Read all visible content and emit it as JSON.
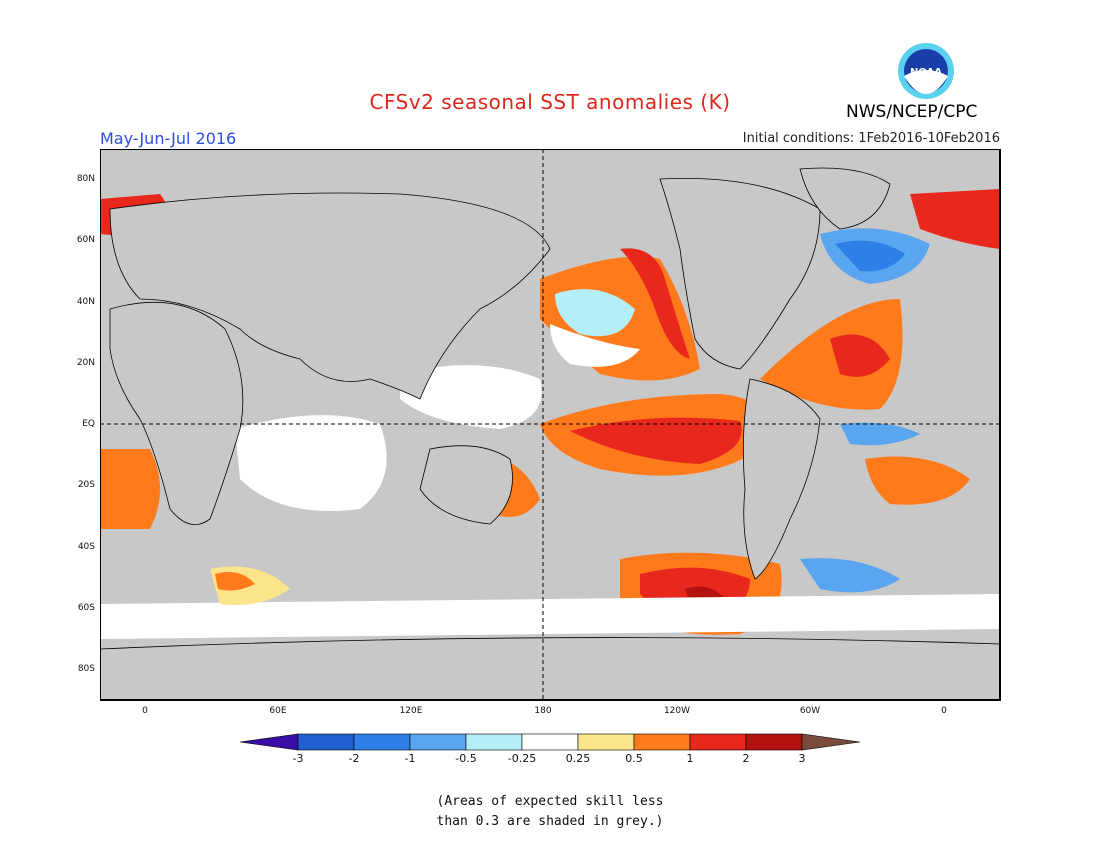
{
  "header": {
    "title": "CFSv2 seasonal SST anomalies (K)",
    "season": "May-Jun-Jul 2016",
    "initial_conditions": "Initial conditions: 1Feb2016-10Feb2016",
    "agency": "NWS/NCEP/CPC",
    "logo_text": "NOAA"
  },
  "map": {
    "lat_labels": [
      "80N",
      "60N",
      "40N",
      "20N",
      "EQ",
      "20S",
      "40S",
      "60S",
      "80S"
    ],
    "lon_labels": [
      "0",
      "60E",
      "120E",
      "180",
      "120W",
      "60W",
      "0"
    ],
    "land_color": "#c8c8c8",
    "ocean_color": "#c8c8c8"
  },
  "colorbar": {
    "labels": [
      "-3",
      "-2",
      "-1",
      "-0.5",
      "-0.25",
      "0.25",
      "0.5",
      "1",
      "2",
      "3"
    ],
    "colors": [
      "#3a0fa8",
      "#1f5fd0",
      "#2f7fe8",
      "#5aa5f0",
      "#b4eef6",
      "#ffffff",
      "#fbe48a",
      "#ff7a1a",
      "#e8281c",
      "#b3120e",
      "#7a4a3a"
    ]
  },
  "footnote": {
    "line1": "(Areas of expected skill less",
    "line2": "than 0.3 are shaded in grey.)"
  }
}
